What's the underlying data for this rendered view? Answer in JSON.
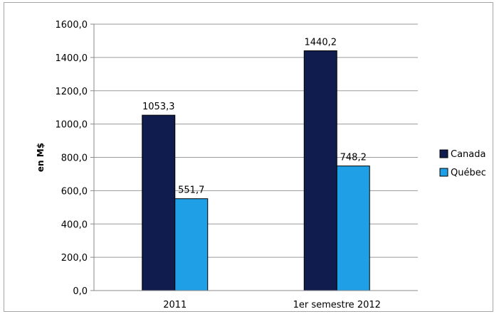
{
  "chart_data": {
    "type": "bar",
    "ylabel": "en M$",
    "ylim": [
      0,
      1600
    ],
    "ytick_step": 200,
    "ytick_labels": [
      "0,0",
      "200,0",
      "400,0",
      "600,0",
      "800,0",
      "1000,0",
      "1200,0",
      "1400,0",
      "1600,0"
    ],
    "categories": [
      "2011",
      "1er semestre 2012"
    ],
    "series": [
      {
        "name": "Canada",
        "color": "#0f1c4d",
        "values": [
          1053.3,
          1440.2
        ],
        "labels": [
          "1053,3",
          "1440,2"
        ]
      },
      {
        "name": "Québec",
        "color": "#1fa0e6",
        "values": [
          551.7,
          748.2
        ],
        "labels": [
          "551,7",
          "748,2"
        ]
      }
    ],
    "grid": true,
    "legend_position": "right"
  }
}
